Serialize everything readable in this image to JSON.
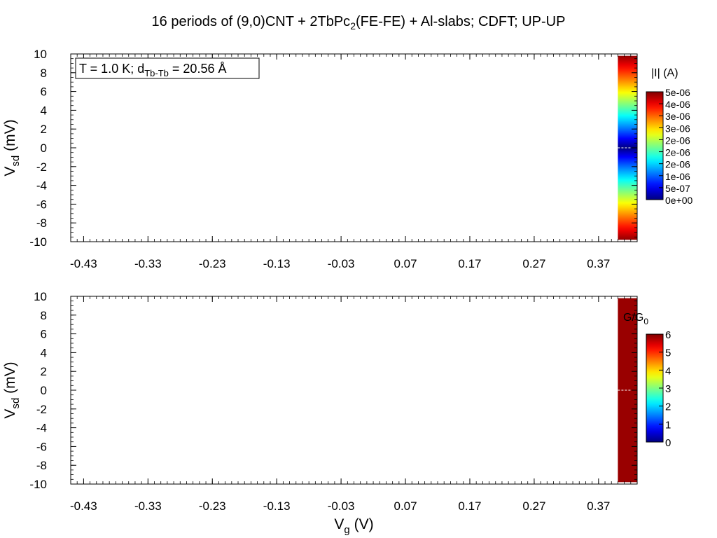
{
  "title": {
    "prefix": "16 periods of (9,0)CNT + 2TbPc",
    "sub": "2",
    "suffix": "(FE-FE) + Al-slabs; CDFT; UP-UP"
  },
  "chart_data": [
    {
      "type": "heatmap",
      "annotation": {
        "prefix": "T = 1.0 K; d",
        "sub": "Tb-Tb",
        "suffix": " = 20.56 Å"
      },
      "xlabel": {
        "main": "",
        "sub": ""
      },
      "ylabel": {
        "main": "V",
        "sub": "sd",
        "suffix": " (mV)"
      },
      "xlim": [
        -0.45,
        0.43
      ],
      "ylim": [
        -10,
        10
      ],
      "x_ticks": [
        "-0.43",
        "-0.33",
        "-0.23",
        "-0.13",
        "-0.03",
        "0.07",
        "0.17",
        "0.27",
        "0.37"
      ],
      "x_tick_values": [
        -0.43,
        -0.33,
        -0.23,
        -0.13,
        -0.03,
        0.07,
        0.17,
        0.27,
        0.37
      ],
      "y_ticks": [
        "10",
        "8",
        "6",
        "4",
        "2",
        "0",
        "-2",
        "-4",
        "-6",
        "-8",
        "-10"
      ],
      "y_tick_values": [
        10,
        8,
        6,
        4,
        2,
        0,
        -2,
        -4,
        -6,
        -8,
        -10
      ],
      "data_strip": {
        "vg_range": [
          0.4,
          0.43
        ],
        "vsd_range": [
          -9.8,
          9.8
        ],
        "quantity": "|I|",
        "note": "|I| increases with |Vsd|, ~0 at Vsd=0, max ~5e-06 at |Vsd|=10"
      },
      "colorbar": {
        "label": "|I| (A)",
        "ticks": [
          "5e-06",
          "4e-06",
          "3e-06",
          "3e-06",
          "2e-06",
          "2e-06",
          "2e-06",
          "1e-06",
          "5e-07",
          "0e+00"
        ],
        "range": [
          0,
          5e-06
        ]
      },
      "colors": {
        "low": "#00008f",
        "high": "#800000"
      }
    },
    {
      "type": "heatmap",
      "xlabel": {
        "main": "V",
        "sub": "g",
        "suffix": "  (V)"
      },
      "ylabel": {
        "main": "V",
        "sub": "sd",
        "suffix": " (mV)"
      },
      "xlim": [
        -0.45,
        0.43
      ],
      "ylim": [
        -10,
        10
      ],
      "x_ticks": [
        "-0.43",
        "-0.33",
        "-0.23",
        "-0.13",
        "-0.03",
        "0.07",
        "0.17",
        "0.27",
        "0.37"
      ],
      "x_tick_values": [
        -0.43,
        -0.33,
        -0.23,
        -0.13,
        -0.03,
        0.07,
        0.17,
        0.27,
        0.37
      ],
      "y_ticks": [
        "10",
        "8",
        "6",
        "4",
        "2",
        "0",
        "-2",
        "-4",
        "-6",
        "-8",
        "-10"
      ],
      "y_tick_values": [
        10,
        8,
        6,
        4,
        2,
        0,
        -2,
        -4,
        -6,
        -8,
        -10
      ],
      "data_strip": {
        "vg_range": [
          0.4,
          0.43
        ],
        "vsd_range": [
          -9.8,
          9.8
        ],
        "quantity": "G/G0",
        "value": 6
      },
      "colorbar": {
        "label_main": "G/G",
        "label_sub": "0",
        "ticks": [
          "6",
          "5",
          "4",
          "3",
          "2",
          "1",
          "0"
        ],
        "range": [
          0,
          6
        ]
      },
      "colors": {
        "strip": "#990000"
      }
    }
  ]
}
